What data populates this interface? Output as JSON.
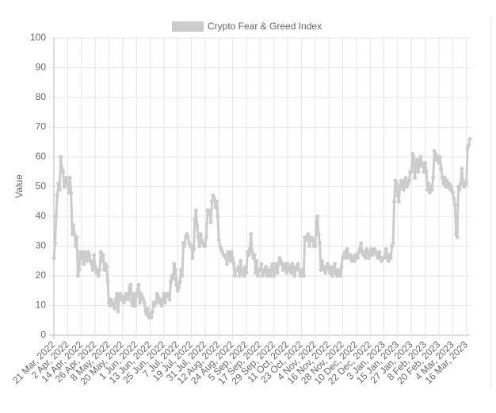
{
  "chart_data": {
    "type": "line",
    "title": "Crypto Fear & Greed Index",
    "y_label": "Value",
    "categories": [
      "21 Mar, 2022",
      null,
      null,
      null,
      null,
      null,
      null,
      null,
      null,
      null,
      null,
      null,
      "2 Apr, 2022",
      null,
      null,
      null,
      null,
      null,
      null,
      null,
      null,
      null,
      null,
      null,
      "14 Apr, 2022",
      null,
      null,
      null,
      null,
      null,
      null,
      null,
      null,
      null,
      null,
      null,
      "26 Apr, 2022",
      null,
      null,
      null,
      null,
      null,
      null,
      null,
      null,
      null,
      null,
      null,
      "8 May, 2022",
      null,
      null,
      null,
      null,
      null,
      null,
      null,
      null,
      null,
      null,
      null,
      "20 May, 2022",
      null,
      null,
      null,
      null,
      null,
      null,
      null,
      null,
      null,
      null,
      null,
      "1 Jun, 2022",
      null,
      null,
      null,
      null,
      null,
      null,
      null,
      null,
      null,
      null,
      null,
      "13 Jun, 2022",
      null,
      null,
      null,
      null,
      null,
      null,
      null,
      null,
      null,
      null,
      null,
      "25 Jun, 2022",
      null,
      null,
      null,
      null,
      null,
      null,
      null,
      null,
      null,
      null,
      null,
      "7 Jul, 2022",
      null,
      null,
      null,
      null,
      null,
      null,
      null,
      null,
      null,
      null,
      null,
      "19 Jul, 2022",
      null,
      null,
      null,
      null,
      null,
      null,
      null,
      null,
      null,
      null,
      null,
      "31 Jul, 2022",
      null,
      null,
      null,
      null,
      null,
      null,
      null,
      null,
      null,
      null,
      null,
      "12 Aug, 2022",
      null,
      null,
      null,
      null,
      null,
      null,
      null,
      null,
      null,
      null,
      null,
      "24 Aug, 2022",
      null,
      null,
      null,
      null,
      null,
      null,
      null,
      null,
      null,
      null,
      null,
      "5 Sep, 2022",
      null,
      null,
      null,
      null,
      null,
      null,
      null,
      null,
      null,
      null,
      null,
      "17 Sep, 2022",
      null,
      null,
      null,
      null,
      null,
      null,
      null,
      null,
      null,
      null,
      null,
      "29 Sep, 2022",
      null,
      null,
      null,
      null,
      null,
      null,
      null,
      null,
      null,
      null,
      null,
      "11 Oct, 2022",
      null,
      null,
      null,
      null,
      null,
      null,
      null,
      null,
      null,
      null,
      null,
      "23 Oct, 2022",
      null,
      null,
      null,
      null,
      null,
      null,
      null,
      null,
      null,
      null,
      null,
      "4 Nov, 2022",
      null,
      null,
      null,
      null,
      null,
      null,
      null,
      null,
      null,
      null,
      null,
      "16 Nov, 2022",
      null,
      null,
      null,
      null,
      null,
      null,
      null,
      null,
      null,
      null,
      null,
      "28 Nov, 2022",
      null,
      null,
      null,
      null,
      null,
      null,
      null,
      null,
      null,
      null,
      null,
      "10 Dec, 2022",
      null,
      null,
      null,
      null,
      null,
      null,
      null,
      null,
      null,
      null,
      null,
      "22 Dec, 2022",
      null,
      null,
      null,
      null,
      null,
      null,
      null,
      null,
      null,
      null,
      null,
      "3 Jan, 2023",
      null,
      null,
      null,
      null,
      null,
      null,
      null,
      null,
      null,
      null,
      null,
      "15 Jan, 2023",
      null,
      null,
      null,
      null,
      null,
      null,
      null,
      null,
      null,
      null,
      null,
      "27 Jan, 2023",
      null,
      null,
      null,
      null,
      null,
      null,
      null,
      null,
      null,
      null,
      null,
      "8 Feb, 2023",
      null,
      null,
      null,
      null,
      null,
      null,
      null,
      null,
      null,
      null,
      null,
      "20 Feb, 2023",
      null,
      null,
      null,
      null,
      null,
      null,
      null,
      null,
      null,
      null,
      null,
      "4 Mar, 2023",
      null,
      null,
      null,
      null,
      null,
      null,
      null,
      null,
      null,
      null,
      null,
      "16 Mar, 2023",
      null,
      null,
      null
    ],
    "series": [
      {
        "name": "Crypto Fear & Greed Index",
        "color": "#cccccc",
        "values": [
          26,
          31,
          40,
          47,
          51,
          49,
          60,
          56,
          55,
          50,
          52,
          53,
          51,
          48,
          53,
          48,
          34,
          37,
          34,
          30,
          33,
          20,
          22,
          28,
          26,
          28,
          24,
          28,
          26,
          25,
          28,
          27,
          25,
          24,
          22,
          27,
          23,
          21,
          22,
          20,
          22,
          28,
          25,
          27,
          22,
          24,
          23,
          18,
          11,
          10,
          12,
          11,
          10,
          9,
          12,
          14,
          8,
          13,
          14,
          12,
          13,
          11,
          12,
          14,
          13,
          12,
          16,
          17,
          11,
          10,
          14,
          10,
          13,
          15,
          17,
          11,
          14,
          13,
          12,
          11,
          8,
          7,
          9,
          6,
          7,
          6,
          8,
          11,
          10,
          11,
          14,
          13,
          11,
          12,
          10,
          12,
          14,
          11,
          13,
          14,
          13,
          12,
          18,
          20,
          19,
          24,
          22,
          17,
          15,
          16,
          18,
          22,
          20,
          31,
          30,
          33,
          34,
          33,
          31,
          30,
          30,
          26,
          29,
          39,
          42,
          37,
          33,
          30,
          34,
          32,
          31,
          30,
          30,
          33,
          42,
          42,
          41,
          38,
          45,
          47,
          46,
          43,
          45,
          40,
          32,
          30,
          29,
          28,
          27,
          27,
          26,
          24,
          28,
          27,
          25,
          28,
          26,
          24,
          20,
          22,
          22,
          23,
          20,
          25,
          21,
          22,
          20,
          23,
          21,
          28,
          27,
          29,
          34,
          28,
          26,
          27,
          21,
          25,
          20,
          22,
          22,
          24,
          20,
          21,
          22,
          23,
          20,
          22,
          21,
          20,
          23,
          24,
          20,
          22,
          24,
          21,
          24,
          26,
          25,
          24,
          22,
          23,
          24,
          21,
          24,
          22,
          23,
          21,
          24,
          23,
          20,
          22,
          23,
          24,
          22,
          20,
          20,
          22,
          20,
          33,
          32,
          33,
          34,
          30,
          32,
          33,
          32,
          30,
          30,
          38,
          40,
          34,
          31,
          22,
          25,
          23,
          22,
          21,
          23,
          24,
          22,
          21,
          23,
          20,
          22,
          24,
          21,
          20,
          22,
          21,
          20,
          23,
          26,
          27,
          28,
          26,
          29,
          27,
          26,
          27,
          25,
          26,
          25,
          27,
          27,
          26,
          28,
          29,
          31,
          28,
          27,
          28,
          26,
          29,
          28,
          26,
          28,
          29,
          27,
          28,
          29,
          28,
          27,
          26,
          28,
          26,
          25,
          26,
          26,
          27,
          29,
          26,
          25,
          27,
          26,
          30,
          31,
          45,
          52,
          51,
          47,
          45,
          50,
          52,
          51,
          49,
          52,
          53,
          50,
          51,
          52,
          55,
          55,
          61,
          60,
          53,
          58,
          59,
          55,
          57,
          60,
          58,
          57,
          55,
          58,
          55,
          49,
          51,
          48,
          50,
          49,
          53,
          62,
          61,
          59,
          60,
          58,
          60,
          56,
          53,
          51,
          53,
          50,
          52,
          50,
          51,
          49,
          50,
          48,
          46,
          44,
          34,
          33,
          50,
          49,
          51,
          56,
          52,
          50,
          51,
          51,
          63,
          64,
          66
        ]
      }
    ],
    "ylim": [
      0,
      100
    ],
    "yticks": [
      0,
      10,
      20,
      30,
      40,
      50,
      60,
      70,
      80,
      90,
      100
    ],
    "grid": true,
    "legend": "top"
  }
}
